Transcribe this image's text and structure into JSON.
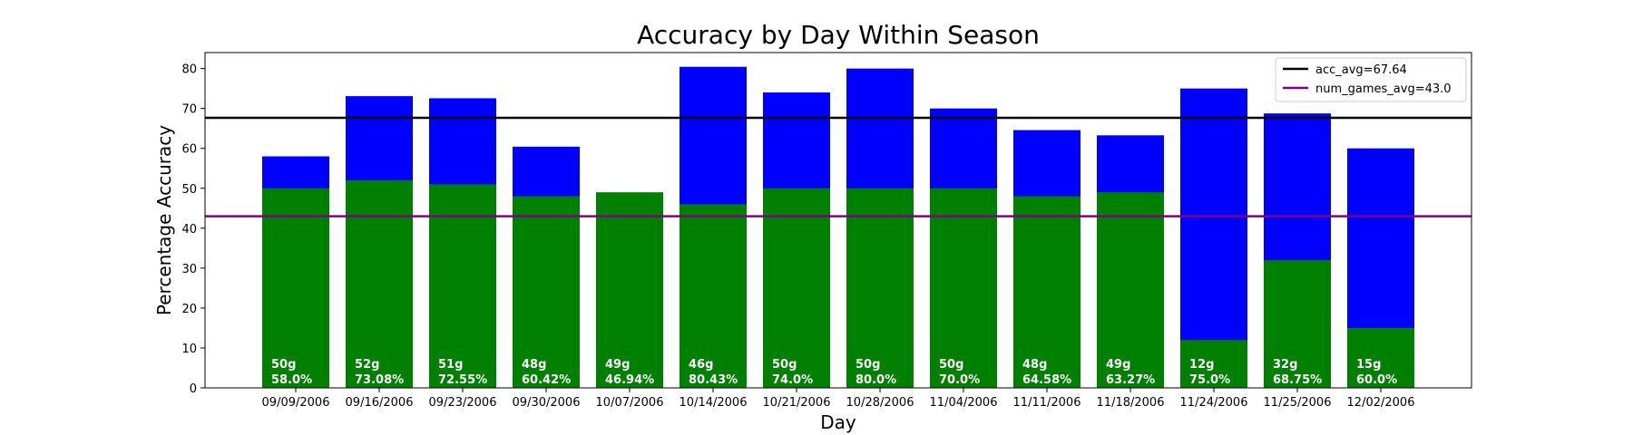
{
  "chart_data": {
    "type": "bar",
    "title": "Accuracy by Day Within Season",
    "xlabel": "Day",
    "ylabel": "Percentage Accuracy",
    "ylim": [
      0,
      84
    ],
    "yticks": [
      0,
      10,
      20,
      30,
      40,
      50,
      60,
      70,
      80
    ],
    "grid": false,
    "legend_position": "top-right",
    "categories": [
      "09/09/2006",
      "09/16/2006",
      "09/23/2006",
      "09/30/2006",
      "10/07/2006",
      "10/14/2006",
      "10/21/2006",
      "10/28/2006",
      "11/04/2006",
      "11/11/2006",
      "11/18/2006",
      "11/24/2006",
      "11/25/2006",
      "12/02/2006"
    ],
    "series": [
      {
        "color": "#0000ff",
        "values": [
          58.0,
          73.08,
          72.55,
          60.42,
          46.94,
          80.43,
          74.0,
          80.0,
          70.0,
          64.58,
          63.27,
          75.0,
          68.75,
          60.0
        ]
      },
      {
        "color": "#008000",
        "values": [
          50,
          52,
          51,
          48,
          49,
          46,
          50,
          50,
          50,
          48,
          49,
          12,
          32,
          15
        ]
      }
    ],
    "bar_labels": [
      [
        "50g",
        "58.0%"
      ],
      [
        "52g",
        "73.08%"
      ],
      [
        "51g",
        "72.55%"
      ],
      [
        "48g",
        "60.42%"
      ],
      [
        "49g",
        "46.94%"
      ],
      [
        "46g",
        "80.43%"
      ],
      [
        "50g",
        "74.0%"
      ],
      [
        "50g",
        "80.0%"
      ],
      [
        "50g",
        "70.0%"
      ],
      [
        "48g",
        "64.58%"
      ],
      [
        "49g",
        "63.27%"
      ],
      [
        "12g",
        "75.0%"
      ],
      [
        "32g",
        "68.75%"
      ],
      [
        "15g",
        "60.0%"
      ]
    ],
    "reference_lines": [
      {
        "label": "acc_avg=67.64",
        "value": 67.64,
        "color": "#000000"
      },
      {
        "label": "num_games_avg=43.0",
        "value": 43.0,
        "color": "#800080"
      }
    ]
  }
}
